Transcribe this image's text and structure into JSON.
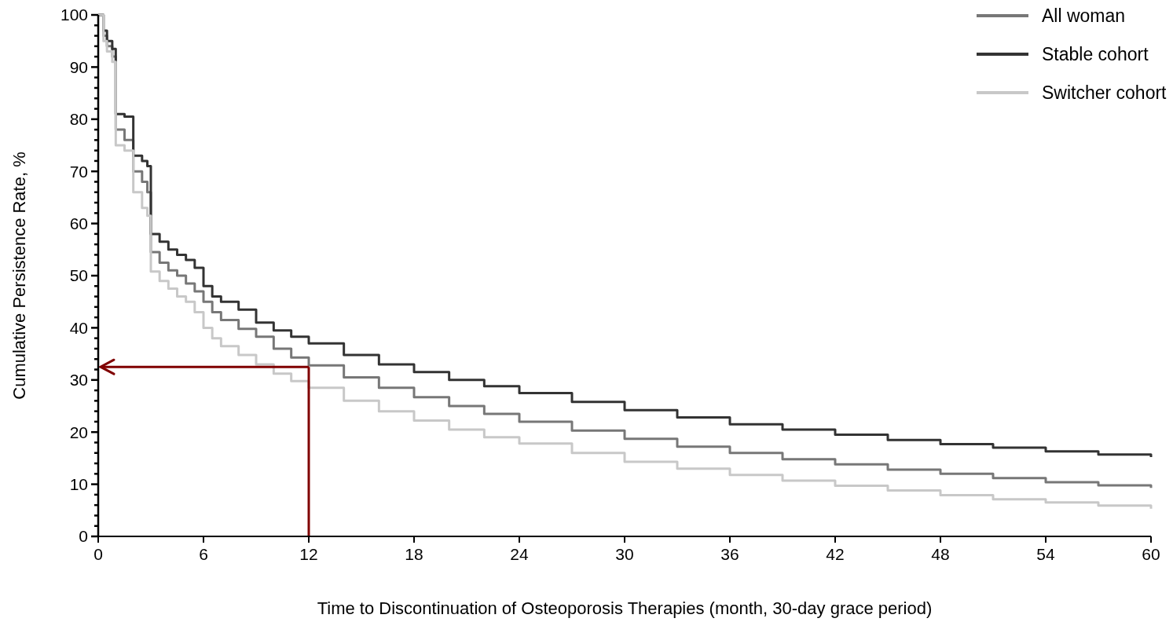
{
  "chart_data": {
    "type": "step",
    "xlabel": "Time to Discontinuation of Osteoporosis Therapies (month, 30-day grace period)",
    "ylabel": "Cumulative Persistence Rate, %",
    "x": [
      0,
      0.3,
      0.5,
      0.8,
      1,
      1.5,
      2,
      2.5,
      2.8,
      3,
      3.5,
      4,
      4.5,
      5,
      5.5,
      6,
      6.5,
      7,
      8,
      9,
      10,
      11,
      12,
      14,
      16,
      18,
      20,
      22,
      24,
      27,
      30,
      33,
      36,
      39,
      42,
      45,
      48,
      51,
      54,
      57,
      60
    ],
    "series": [
      {
        "name": "All woman",
        "color": "#777777",
        "values": [
          100,
          96,
          94,
          92,
          78,
          76,
          70,
          68,
          66,
          54.5,
          52.5,
          51,
          50,
          48.5,
          47,
          45,
          43,
          41.5,
          39.8,
          38.3,
          36,
          34.3,
          32.8,
          30.5,
          28.5,
          26.7,
          25,
          23.5,
          22,
          20.3,
          18.7,
          17.2,
          16,
          14.8,
          13.8,
          12.8,
          12,
          11.2,
          10.4,
          9.8,
          9.3
        ]
      },
      {
        "name": "Stable cohort",
        "color": "#333333",
        "values": [
          100,
          97,
          95,
          93.5,
          81,
          80.5,
          73,
          72,
          71,
          58,
          56.5,
          55,
          54,
          53,
          51.5,
          48,
          46,
          45,
          43.5,
          41,
          39.5,
          38.3,
          37,
          34.8,
          33,
          31.5,
          30,
          28.8,
          27.5,
          25.8,
          24.2,
          22.8,
          21.5,
          20.5,
          19.5,
          18.5,
          17.7,
          17,
          16.3,
          15.7,
          15.2
        ]
      },
      {
        "name": "Switcher cohort",
        "color": "#c8c8c8",
        "values": [
          100,
          95,
          93,
          91,
          75,
          74,
          66,
          63,
          61.5,
          50.8,
          49,
          47.5,
          46,
          45,
          43,
          40,
          38,
          36.5,
          34.8,
          33,
          31.2,
          29.8,
          28.5,
          26,
          24,
          22.2,
          20.5,
          19,
          17.8,
          16,
          14.3,
          13,
          11.8,
          10.7,
          9.7,
          8.8,
          7.9,
          7.1,
          6.5,
          5.9,
          5.3
        ]
      }
    ],
    "xlim": [
      0,
      60
    ],
    "xticks": [
      0,
      6,
      12,
      18,
      24,
      30,
      36,
      42,
      48,
      54,
      60
    ],
    "ylim": [
      0,
      100
    ],
    "yticks": [
      0,
      {
        "value": 2,
        "label": null
      },
      {
        "value": 4,
        "label": null
      },
      {
        "value": 6,
        "label": null
      },
      {
        "value": 8,
        "label": null
      },
      10,
      {
        "value": 12,
        "label": null
      },
      {
        "value": 14,
        "label": null
      },
      {
        "value": 16,
        "label": null
      },
      {
        "value": 18,
        "label": null
      },
      20,
      {
        "value": 22,
        "label": null
      },
      {
        "value": 24,
        "label": null
      },
      {
        "value": 26,
        "label": null
      },
      {
        "value": 28,
        "label": null
      },
      30,
      {
        "value": 32,
        "label": null
      },
      {
        "value": 34,
        "label": null
      },
      {
        "value": 36,
        "label": null
      },
      {
        "value": 38,
        "label": null
      },
      40,
      {
        "value": 42,
        "label": null
      },
      {
        "value": 44,
        "label": null
      },
      {
        "value": 46,
        "label": null
      },
      {
        "value": 48,
        "label": null
      },
      50,
      {
        "value": 52,
        "label": null
      },
      {
        "value": 54,
        "label": null
      },
      {
        "value": 56,
        "label": null
      },
      {
        "value": 58,
        "label": null
      },
      60,
      {
        "value": 62,
        "label": null
      },
      {
        "value": 64,
        "label": null
      },
      {
        "value": 66,
        "label": null
      },
      {
        "value": 68,
        "label": null
      },
      70,
      {
        "value": 72,
        "label": null
      },
      {
        "value": 74,
        "label": null
      },
      {
        "value": 76,
        "label": null
      },
      {
        "value": 78,
        "label": null
      },
      80,
      {
        "value": 82,
        "label": null
      },
      {
        "value": 84,
        "label": null
      },
      {
        "value": 86,
        "label": null
      },
      {
        "value": 88,
        "label": null
      },
      90,
      {
        "value": 92,
        "label": null
      },
      {
        "value": 94,
        "label": null
      },
      {
        "value": 96,
        "label": null
      },
      {
        "value": 98,
        "label": null
      },
      100
    ],
    "ref_lines": [
      {
        "axis": "x",
        "value": 12,
        "color": "#800000"
      },
      {
        "axis": "y",
        "value": 32.5,
        "color": "#800000"
      }
    ],
    "grid": false,
    "legend": "top right",
    "marker": "none",
    "line_style": "solid"
  }
}
